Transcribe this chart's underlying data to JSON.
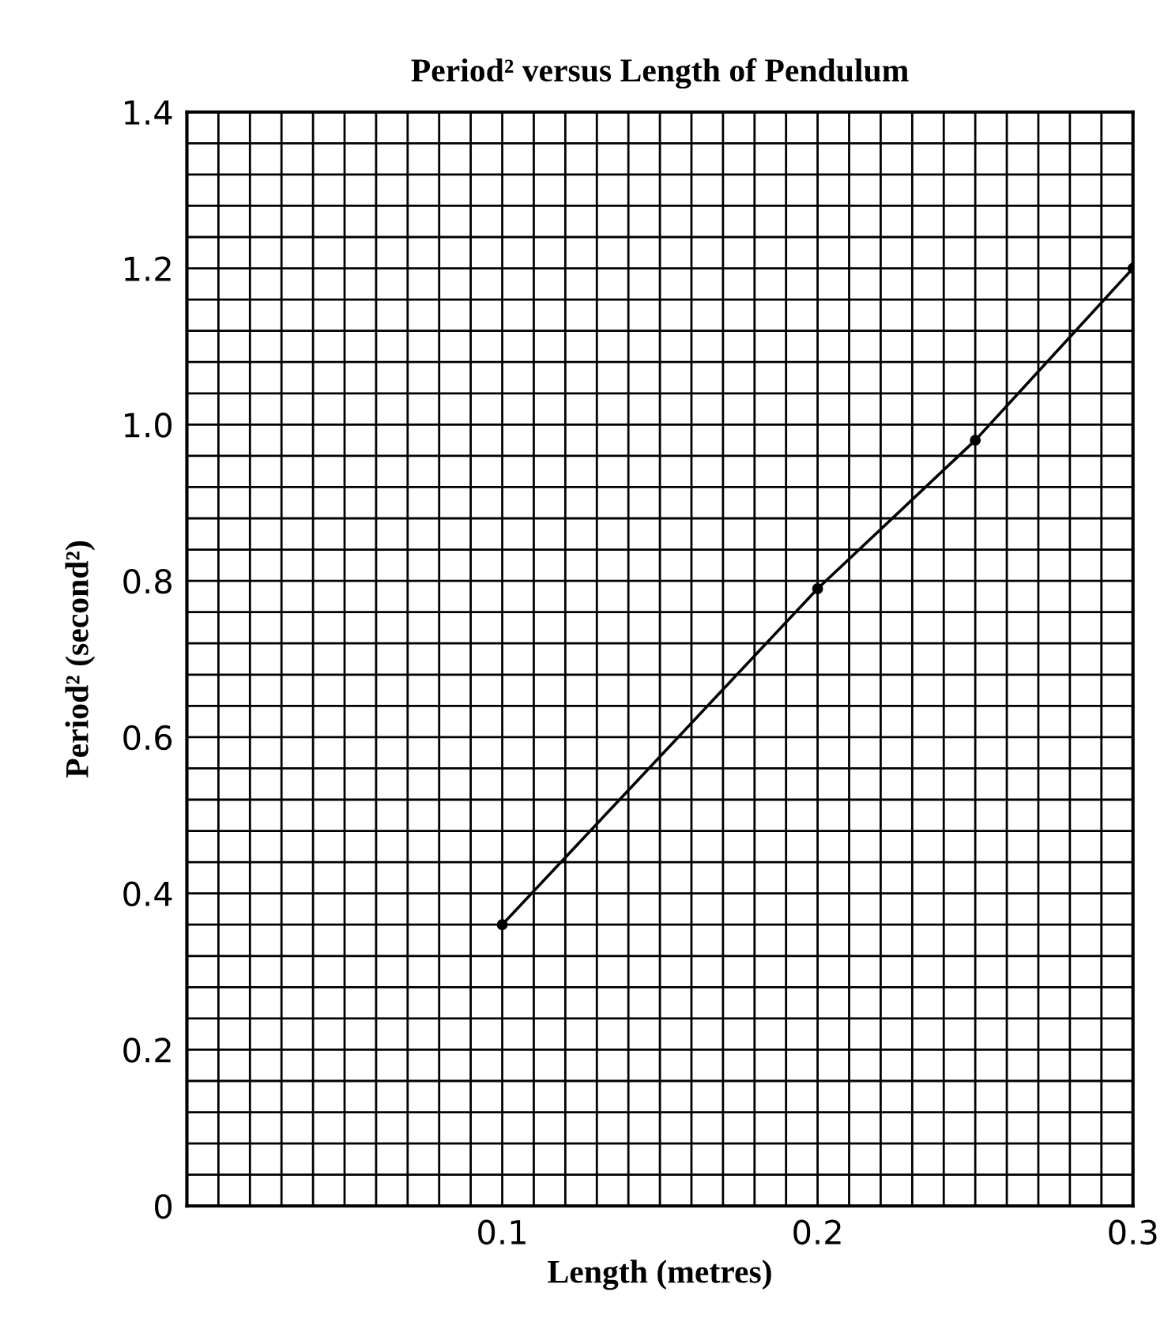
{
  "chart_data": {
    "type": "line",
    "title": "Period² versus Length of Pendulum",
    "xlabel": "Length (metres)",
    "ylabel": "Period² (second²)",
    "x": [
      0.1,
      0.2,
      0.25,
      0.3
    ],
    "series": [
      {
        "color": "#000000",
        "values": [
          0.36,
          0.79,
          0.98,
          1.2
        ]
      }
    ],
    "marker": "circle",
    "line_style": "solid",
    "grid": true,
    "xlim": [
      0,
      0.3
    ],
    "ylim": [
      0,
      1.4
    ],
    "xticks": [
      {
        "value": 0,
        "label": null
      },
      {
        "value": 0.01,
        "label": null
      },
      {
        "value": 0.02,
        "label": null
      },
      {
        "value": 0.03,
        "label": null
      },
      {
        "value": 0.04,
        "label": null
      },
      {
        "value": 0.05,
        "label": null
      },
      {
        "value": 0.06,
        "label": null
      },
      {
        "value": 0.07,
        "label": null
      },
      {
        "value": 0.08,
        "label": null
      },
      {
        "value": 0.09,
        "label": null
      },
      0.1,
      {
        "value": 0.11,
        "label": null
      },
      {
        "value": 0.12,
        "label": null
      },
      {
        "value": 0.13,
        "label": null
      },
      {
        "value": 0.14,
        "label": null
      },
      {
        "value": 0.15,
        "label": null
      },
      {
        "value": 0.16,
        "label": null
      },
      {
        "value": 0.17,
        "label": null
      },
      {
        "value": 0.18,
        "label": null
      },
      {
        "value": 0.19,
        "label": null
      },
      0.2,
      {
        "value": 0.21,
        "label": null
      },
      {
        "value": 0.22,
        "label": null
      },
      {
        "value": 0.23,
        "label": null
      },
      {
        "value": 0.24,
        "label": null
      },
      {
        "value": 0.25,
        "label": null
      },
      {
        "value": 0.26,
        "label": null
      },
      {
        "value": 0.27,
        "label": null
      },
      {
        "value": 0.28,
        "label": null
      },
      {
        "value": 0.29,
        "label": null
      },
      0.3
    ],
    "yticks": [
      0,
      {
        "value": 0.04,
        "label": null
      },
      {
        "value": 0.08,
        "label": null
      },
      {
        "value": 0.12,
        "label": null
      },
      {
        "value": 0.16,
        "label": null
      },
      0.2,
      {
        "value": 0.24,
        "label": null
      },
      {
        "value": 0.28,
        "label": null
      },
      {
        "value": 0.32,
        "label": null
      },
      {
        "value": 0.36,
        "label": null
      },
      0.4,
      {
        "value": 0.44,
        "label": null
      },
      {
        "value": 0.48,
        "label": null
      },
      {
        "value": 0.52,
        "label": null
      },
      {
        "value": 0.56,
        "label": null
      },
      0.6,
      {
        "value": 0.64,
        "label": null
      },
      {
        "value": 0.68,
        "label": null
      },
      {
        "value": 0.72,
        "label": null
      },
      {
        "value": 0.76,
        "label": null
      },
      0.8,
      {
        "value": 0.84,
        "label": null
      },
      {
        "value": 0.88,
        "label": null
      },
      {
        "value": 0.92,
        "label": null
      },
      {
        "value": 0.96,
        "label": null
      },
      {
        "value": 1.0,
        "label": "1.0"
      },
      {
        "value": 1.04,
        "label": null
      },
      {
        "value": 1.08,
        "label": null
      },
      {
        "value": 1.12,
        "label": null
      },
      {
        "value": 1.16,
        "label": null
      },
      1.2,
      {
        "value": 1.24,
        "label": null
      },
      {
        "value": 1.28,
        "label": null
      },
      {
        "value": 1.32,
        "label": null
      },
      {
        "value": 1.36,
        "label": null
      },
      1.4
    ]
  }
}
